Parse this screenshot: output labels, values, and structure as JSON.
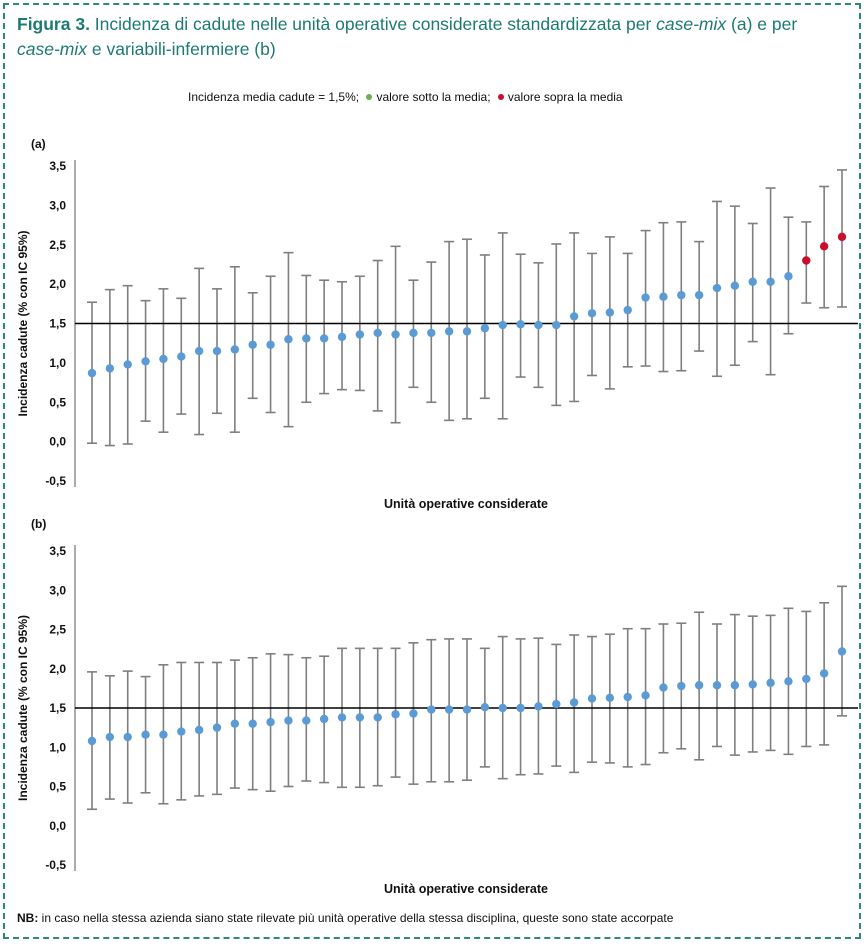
{
  "figure": {
    "label": "Figura 3.",
    "title_part1": " Incidenza di cadute nelle unità operative considerate standardizzata per ",
    "title_italic1": "case-mix",
    "title_part2": " (a) e per ",
    "title_italic2": "case-mix",
    "title_part3": " e variabili-infermiere (b)"
  },
  "legend": {
    "text_mean": "Incidenza media cadute = 1,5%;",
    "below_label": "valore sotto la media;",
    "above_label": "valore sopra la media",
    "below_color": "#6ab04c",
    "above_color": "#c8102e"
  },
  "note": {
    "label": "NB:",
    "text": " in caso nella stessa azienda siano state rilevate più unità operative della stessa disciplina, queste sono state accorpate"
  },
  "colors": {
    "point_default": "#5b9bd5",
    "point_above": "#c8102e",
    "errorbar": "#7f7f7f",
    "mean_line": "#000000",
    "frame": "#2e8a74",
    "title": "#1c7a73"
  },
  "chart_data": [
    {
      "type": "scatter",
      "panel_label": "(a)",
      "xlabel": "Unità operative considerate",
      "ylabel": "Incidenza cadute (% con IC 95%)",
      "ylim": [
        -0.5,
        3.5
      ],
      "yticks": [
        "-0,5",
        "0,0",
        "0,5",
        "1,0",
        "1,5",
        "2,0",
        "2,5",
        "3,0",
        "3,5"
      ],
      "reference_line": 1.5,
      "values": [
        0.87,
        0.93,
        0.98,
        1.02,
        1.05,
        1.08,
        1.15,
        1.15,
        1.17,
        1.23,
        1.23,
        1.3,
        1.31,
        1.31,
        1.33,
        1.36,
        1.38,
        1.36,
        1.38,
        1.38,
        1.4,
        1.4,
        1.44,
        1.48,
        1.49,
        1.48,
        1.48,
        1.59,
        1.63,
        1.64,
        1.67,
        1.83,
        1.84,
        1.86,
        1.86,
        1.95,
        1.98,
        2.03,
        2.03,
        2.1,
        2.3,
        2.48,
        2.6
      ],
      "lower": [
        -0.02,
        -0.05,
        -0.03,
        0.26,
        0.12,
        0.35,
        0.09,
        0.36,
        0.12,
        0.55,
        0.37,
        0.19,
        0.5,
        0.61,
        0.66,
        0.65,
        0.39,
        0.24,
        0.69,
        0.5,
        0.27,
        0.29,
        0.55,
        0.29,
        0.82,
        0.69,
        0.46,
        0.51,
        0.84,
        0.67,
        0.95,
        0.96,
        0.89,
        0.9,
        1.15,
        0.83,
        0.97,
        1.27,
        0.85,
        1.37,
        1.76,
        1.7,
        1.71
      ],
      "upper": [
        1.77,
        1.93,
        1.98,
        1.79,
        1.94,
        1.82,
        2.2,
        1.94,
        2.22,
        1.89,
        2.1,
        2.4,
        2.11,
        2.05,
        2.03,
        2.1,
        2.3,
        2.48,
        2.05,
        2.28,
        2.54,
        2.57,
        2.37,
        2.65,
        2.38,
        2.27,
        2.51,
        2.65,
        2.39,
        2.6,
        2.39,
        2.68,
        2.78,
        2.79,
        2.54,
        3.05,
        2.99,
        2.77,
        3.22,
        2.85,
        2.79,
        3.24,
        3.45
      ],
      "above_mean_from_index": 40,
      "grid": false,
      "legend": "top-center"
    },
    {
      "type": "scatter",
      "panel_label": "(b)",
      "xlabel": "Unità operative considerate",
      "ylabel": "Incidenza cadute (% con IC 95%)",
      "ylim": [
        -0.5,
        3.5
      ],
      "yticks": [
        "-0,5",
        "0,0",
        "0,5",
        "1,0",
        "1,5",
        "2,0",
        "2,5",
        "3,0",
        "3,5"
      ],
      "reference_line": 1.5,
      "values": [
        1.08,
        1.13,
        1.13,
        1.16,
        1.16,
        1.2,
        1.22,
        1.25,
        1.3,
        1.3,
        1.32,
        1.34,
        1.34,
        1.36,
        1.38,
        1.38,
        1.38,
        1.42,
        1.43,
        1.48,
        1.48,
        1.48,
        1.51,
        1.5,
        1.5,
        1.52,
        1.55,
        1.57,
        1.62,
        1.63,
        1.64,
        1.66,
        1.76,
        1.78,
        1.79,
        1.79,
        1.79,
        1.8,
        1.82,
        1.84,
        1.87,
        1.94,
        2.22
      ],
      "lower": [
        0.21,
        0.34,
        0.29,
        0.42,
        0.28,
        0.33,
        0.38,
        0.4,
        0.48,
        0.46,
        0.44,
        0.5,
        0.57,
        0.55,
        0.49,
        0.49,
        0.51,
        0.62,
        0.53,
        0.56,
        0.56,
        0.58,
        0.75,
        0.6,
        0.65,
        0.66,
        0.76,
        0.68,
        0.81,
        0.8,
        0.75,
        0.78,
        0.93,
        0.98,
        0.84,
        1.01,
        0.9,
        0.94,
        0.96,
        0.91,
        1.01,
        1.03,
        1.4
      ],
      "upper": [
        1.96,
        1.91,
        1.97,
        1.9,
        2.05,
        2.08,
        2.08,
        2.08,
        2.11,
        2.14,
        2.19,
        2.18,
        2.14,
        2.16,
        2.26,
        2.26,
        2.26,
        2.26,
        2.33,
        2.37,
        2.38,
        2.38,
        2.26,
        2.41,
        2.38,
        2.39,
        2.31,
        2.43,
        2.41,
        2.44,
        2.51,
        2.51,
        2.57,
        2.58,
        2.72,
        2.57,
        2.69,
        2.67,
        2.68,
        2.77,
        2.73,
        2.84,
        3.05
      ],
      "above_mean_from_index": null,
      "grid": false
    }
  ]
}
